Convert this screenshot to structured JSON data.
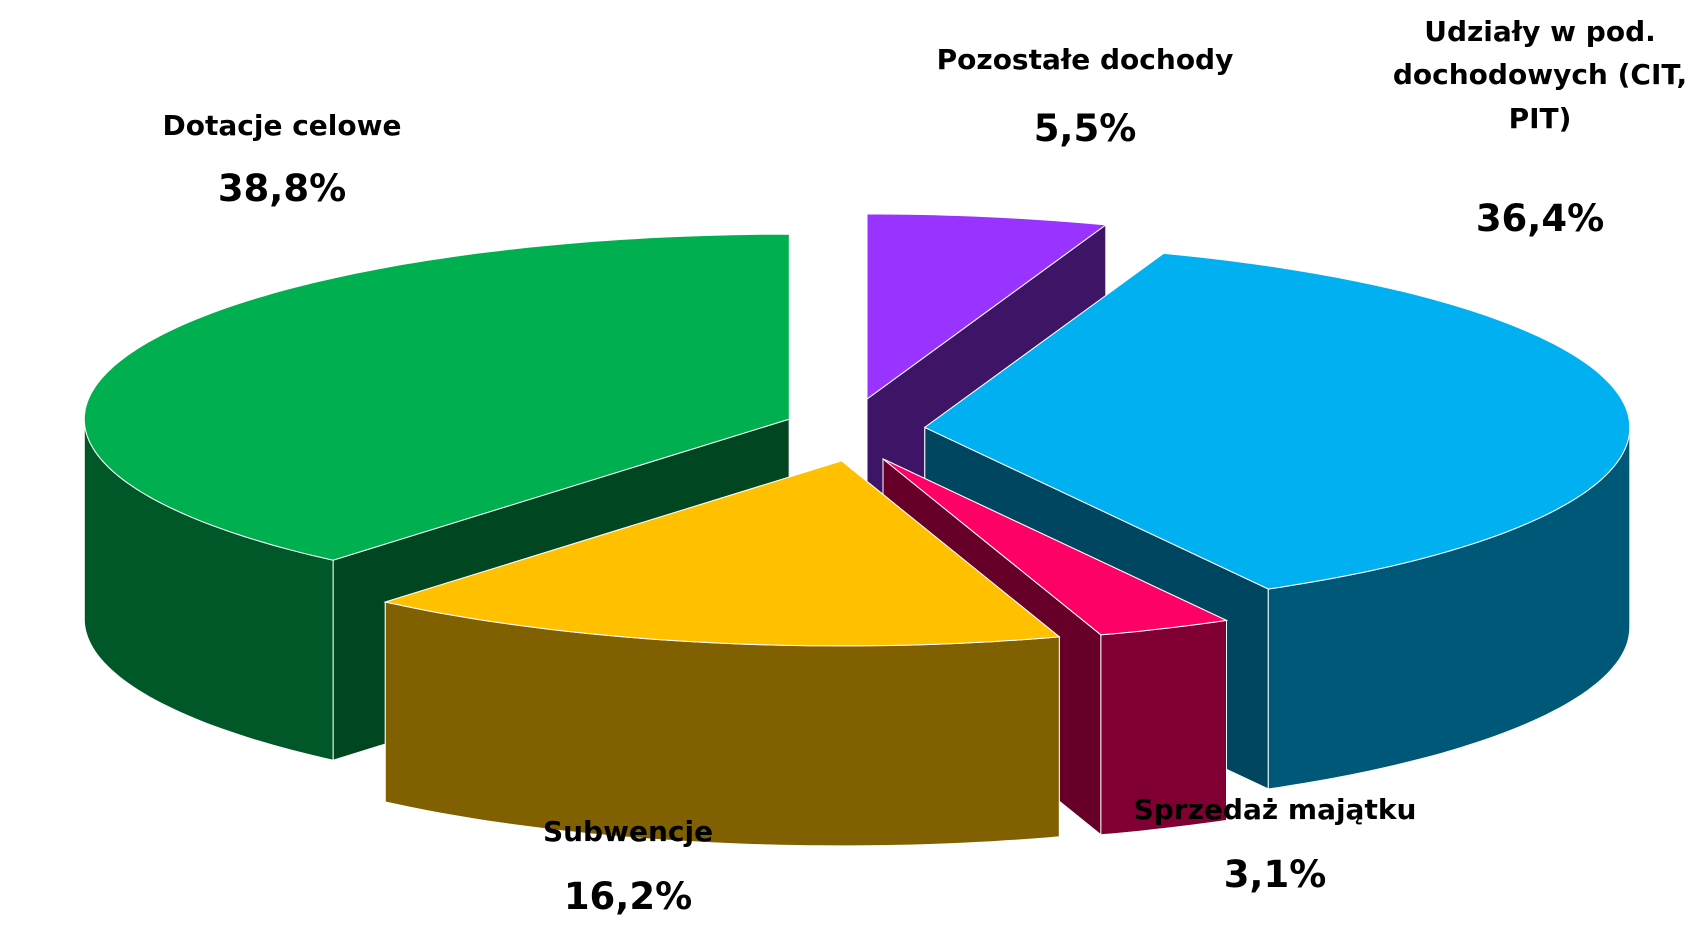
{
  "chart_data": {
    "type": "pie3d",
    "categories": [
      "Pozostałe dochody",
      "Udziały w pod. dochodowych (CIT, PIT)",
      "Sprzedaż majątku",
      "Subwencje",
      "Dotacje celowe"
    ],
    "values": [
      5.5,
      36.4,
      3.1,
      16.2,
      38.8
    ],
    "value_labels": [
      "5,5%",
      "36,4%",
      "3,1%",
      "16,2%",
      "38,8%"
    ],
    "colors": [
      "#9933ff",
      "#00b0f0",
      "#ff0066",
      "#ffc000",
      "#00b050"
    ]
  }
}
